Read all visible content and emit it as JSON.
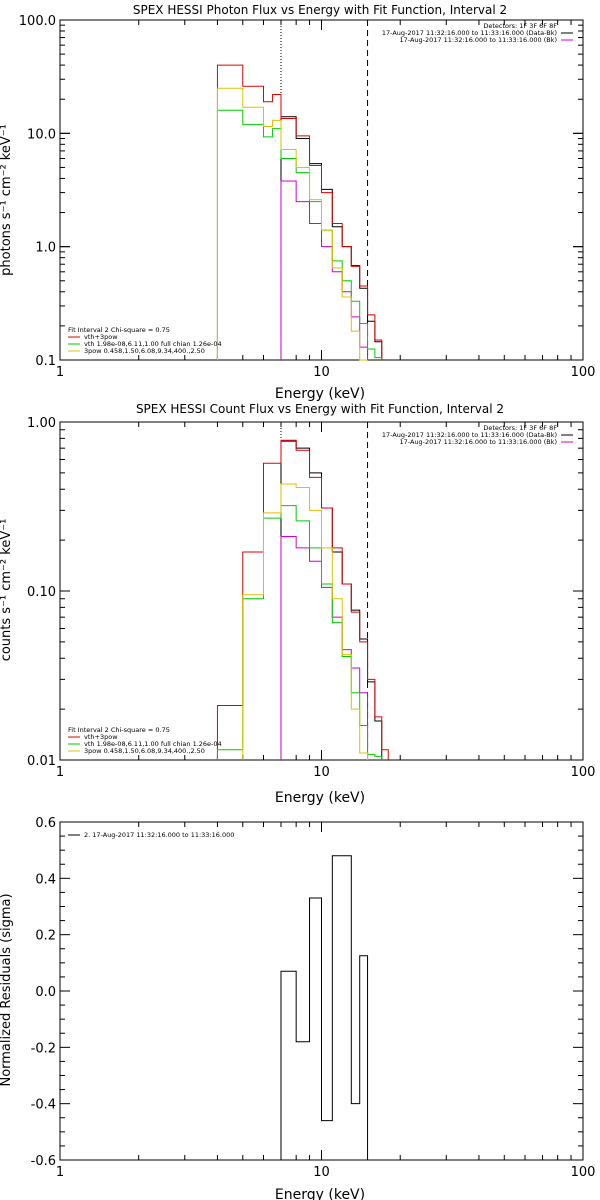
{
  "chart_data": [
    {
      "type": "line",
      "title": "SPEX HESSI Photon Flux vs Energy with Fit Function, Interval 2",
      "xlabel": "Energy (keV)",
      "ylabel": "photons s⁻¹ cm⁻² keV⁻¹",
      "xscale": "log",
      "yscale": "log",
      "xlim": [
        1,
        100
      ],
      "ylim": [
        0.1,
        100
      ],
      "x_ticks": [
        {
          "v": 1,
          "label": "1"
        },
        {
          "v": 10,
          "label": "10"
        },
        {
          "v": 100,
          "label": "100"
        }
      ],
      "y_ticks": [
        {
          "v": 0.1,
          "label": "0.1"
        },
        {
          "v": 1,
          "label": "1.0"
        },
        {
          "v": 10,
          "label": "10.0"
        },
        {
          "v": 100,
          "label": "100.0"
        }
      ],
      "vlines": [
        {
          "x": 7.0,
          "style": "dotted"
        },
        {
          "x": 15.0,
          "style": "dashed"
        }
      ],
      "header_lines": [
        "Detectors: 1F 3F 6F 8F",
        "17-Aug-2017 11:32:16.000 to 11:33:16.000 (Data-Bk)",
        "17-Aug-2017 11:32:16.000 to 11:33:16.000 (Bk)"
      ],
      "header_colors": [
        null,
        "#000000",
        "#d000d0"
      ],
      "legend_lines": [
        "Fit Interval 2   Chi-square = 0.75",
        "vth+3pow",
        "vth 1.98e-08,6.11,1.00  full chian 1.26e-04",
        "3pow 0.458,1.50,6.08,9.34,400.,2.50"
      ],
      "legend_colors": [
        null,
        "#e00000",
        "#00cc00",
        "#e0c000"
      ],
      "series": [
        {
          "name": "Data-Bk",
          "color": "#000000",
          "bins": [
            [
              7,
              8,
              14.0
            ],
            [
              8,
              9,
              9.0
            ],
            [
              9,
              10,
              5.4
            ],
            [
              10,
              11,
              3.2
            ],
            [
              11,
              12,
              1.5
            ],
            [
              12,
              13,
              1.0
            ],
            [
              13,
              14,
              0.68
            ],
            [
              14,
              15,
              0.43
            ],
            [
              15,
              16,
              0.22
            ],
            [
              16,
              17,
              0.145
            ]
          ]
        },
        {
          "name": "Bk",
          "color": "#d000d0",
          "bins": [
            [
              7,
              8,
              3.8
            ],
            [
              8,
              9,
              2.5
            ],
            [
              9,
              10,
              1.6
            ],
            [
              10,
              11,
              1.0
            ],
            [
              11,
              12,
              0.6
            ],
            [
              12,
              13,
              0.4
            ],
            [
              13,
              14,
              0.24
            ],
            [
              14,
              15,
              0.13
            ]
          ]
        },
        {
          "name": "vth+3pow",
          "color": "#e00000",
          "bins": [
            [
              4,
              5,
              40
            ],
            [
              5,
              6,
              26
            ],
            [
              6,
              6.5,
              19
            ],
            [
              6.5,
              7,
              22
            ],
            [
              7,
              8,
              13.5
            ],
            [
              8,
              9,
              9.5
            ],
            [
              9,
              10,
              5.2
            ],
            [
              10,
              11,
              3.0
            ],
            [
              11,
              12,
              1.6
            ],
            [
              12,
              13,
              1.0
            ],
            [
              13,
              14,
              0.67
            ],
            [
              14,
              15,
              0.45
            ],
            [
              15,
              16,
              0.25
            ],
            [
              16,
              17,
              0.15
            ]
          ]
        },
        {
          "name": "vth",
          "color": "#00cc00",
          "bins": [
            [
              4,
              5,
              16
            ],
            [
              5,
              6,
              12
            ],
            [
              6,
              6.5,
              9.3
            ],
            [
              6.5,
              7,
              11
            ],
            [
              7,
              8,
              6.0
            ],
            [
              8,
              9,
              4.5
            ],
            [
              9,
              10,
              2.5
            ],
            [
              10,
              11,
              1.4
            ],
            [
              11,
              12,
              0.75
            ],
            [
              12,
              13,
              0.5
            ],
            [
              13,
              14,
              0.33
            ],
            [
              14,
              15,
              0.21
            ],
            [
              15,
              16,
              0.125
            ],
            [
              16,
              17,
              0.105
            ]
          ]
        },
        {
          "name": "3pow",
          "color": "#e0c000",
          "bins": [
            [
              4,
              5,
              25
            ],
            [
              5,
              6,
              17
            ],
            [
              6,
              6.5,
              11.5
            ],
            [
              6.5,
              7,
              13
            ],
            [
              7,
              8,
              7.2
            ],
            [
              8,
              9,
              5.0
            ],
            [
              9,
              10,
              2.6
            ],
            [
              10,
              11,
              1.4
            ],
            [
              11,
              12,
              0.65
            ],
            [
              12,
              13,
              0.36
            ],
            [
              13,
              14,
              0.18
            ],
            [
              14,
              15,
              0.1
            ]
          ]
        }
      ]
    },
    {
      "type": "line",
      "title": "SPEX HESSI Count Flux vs Energy with Fit Function, Interval 2",
      "xlabel": "Energy (keV)",
      "ylabel": "counts s⁻¹ cm⁻² keV⁻¹",
      "xscale": "log",
      "yscale": "log",
      "xlim": [
        1,
        100
      ],
      "ylim": [
        0.01,
        1
      ],
      "x_ticks": [
        {
          "v": 1,
          "label": "1"
        },
        {
          "v": 10,
          "label": "10"
        },
        {
          "v": 100,
          "label": "100"
        }
      ],
      "y_ticks": [
        {
          "v": 0.01,
          "label": "0.01"
        },
        {
          "v": 0.1,
          "label": "0.10"
        },
        {
          "v": 1,
          "label": "1.00"
        }
      ],
      "vlines": [
        {
          "x": 7.0,
          "style": "dotted"
        },
        {
          "x": 15.0,
          "style": "dashed"
        }
      ],
      "header_lines": [
        "Detectors: 1F 3F 6F 8F",
        "17-Aug-2017 11:32:16.000 to 11:33:16.000 (Data-Bk)",
        "17-Aug-2017 11:32:16.000 to 11:33:16.000 (Bk)"
      ],
      "header_colors": [
        null,
        "#000000",
        "#d000d0"
      ],
      "legend_lines": [
        "Fit Interval 2   Chi-square = 0.75",
        "vth+3pow",
        "vth 1.98e-08,6.11,1.00  full chian 1.26e-04",
        "3pow 0.458,1.50,6.08,9.34,400.,2.50"
      ],
      "legend_colors": [
        null,
        "#e00000",
        "#00cc00",
        "#e0c000"
      ],
      "series": [
        {
          "name": "Data-Bk",
          "color": "#000000",
          "bins": [
            [
              7,
              8,
              0.77
            ],
            [
              8,
              9,
              0.7
            ],
            [
              9,
              10,
              0.5
            ],
            [
              10,
              11,
              0.31
            ],
            [
              11,
              12,
              0.17
            ],
            [
              12,
              13,
              0.11
            ],
            [
              13,
              14,
              0.077
            ],
            [
              14,
              15,
              0.052
            ],
            [
              15,
              16,
              0.029
            ],
            [
              16,
              17,
              0.017
            ]
          ]
        },
        {
          "name": "Bk",
          "color": "#d000d0",
          "bins": [
            [
              7,
              8,
              0.21
            ],
            [
              8,
              9,
              0.18
            ],
            [
              9,
              10,
              0.15
            ],
            [
              10,
              11,
              0.105
            ],
            [
              11,
              12,
              0.07
            ],
            [
              12,
              13,
              0.045
            ],
            [
              13,
              14,
              0.035
            ],
            [
              14,
              15,
              0.025
            ]
          ]
        },
        {
          "name": "vth+3pow",
          "color": "#e00000",
          "bins": [
            [
              4,
              5,
              0.021
            ],
            [
              5,
              6,
              0.17
            ],
            [
              6,
              7,
              0.57
            ],
            [
              7,
              8,
              0.78
            ],
            [
              8,
              9,
              0.68
            ],
            [
              9,
              10,
              0.47
            ],
            [
              10,
              11,
              0.31
            ],
            [
              11,
              12,
              0.18
            ],
            [
              12,
              13,
              0.11
            ],
            [
              13,
              14,
              0.075
            ],
            [
              14,
              15,
              0.05
            ],
            [
              15,
              16,
              0.03
            ],
            [
              16,
              17,
              0.018
            ],
            [
              17,
              18,
              0.0115
            ]
          ]
        },
        {
          "name": "vth",
          "color": "#00cc00",
          "bins": [
            [
              4,
              5,
              0.0115
            ],
            [
              5,
              6,
              0.09
            ],
            [
              6,
              7,
              0.27
            ],
            [
              7,
              8,
              0.32
            ],
            [
              8,
              9,
              0.26
            ],
            [
              9,
              10,
              0.18
            ],
            [
              10,
              11,
              0.11
            ],
            [
              11,
              12,
              0.065
            ],
            [
              12,
              13,
              0.041
            ],
            [
              13,
              14,
              0.025
            ],
            [
              14,
              15,
              0.016
            ],
            [
              15,
              16,
              0.0108
            ],
            [
              16,
              17,
              0.0105
            ]
          ]
        },
        {
          "name": "3pow",
          "color": "#e0c000",
          "bins": [
            [
              5,
              6,
              0.095
            ],
            [
              6,
              7,
              0.29
            ],
            [
              7,
              8,
              0.43
            ],
            [
              8,
              9,
              0.41
            ],
            [
              9,
              10,
              0.3
            ],
            [
              10,
              11,
              0.18
            ],
            [
              11,
              12,
              0.09
            ],
            [
              12,
              13,
              0.042
            ],
            [
              13,
              14,
              0.02
            ],
            [
              14,
              15,
              0.011
            ]
          ]
        }
      ]
    },
    {
      "type": "line",
      "title": "",
      "xlabel": "Energy (keV)",
      "ylabel": "Normalized Residuals (sigma)",
      "xscale": "log",
      "yscale": "linear",
      "xlim": [
        1,
        100
      ],
      "ylim": [
        -0.6,
        0.6
      ],
      "x_ticks": [
        {
          "v": 1,
          "label": "1"
        },
        {
          "v": 10,
          "label": "10"
        },
        {
          "v": 100,
          "label": "100"
        }
      ],
      "y_ticks": [
        {
          "v": -0.6,
          "label": "-0.6"
        },
        {
          "v": -0.4,
          "label": "-0.4"
        },
        {
          "v": -0.2,
          "label": "-0.2"
        },
        {
          "v": 0.0,
          "label": "0.0"
        },
        {
          "v": 0.2,
          "label": "0.2"
        },
        {
          "v": 0.4,
          "label": "0.4"
        },
        {
          "v": 0.6,
          "label": "0.6"
        }
      ],
      "legend_lines": [
        "2. 17-Aug-2017 11:32:16.000 to 11:33:16.000"
      ],
      "legend_colors": [
        "#000000"
      ],
      "series": [
        {
          "name": "residuals",
          "color": "#000000",
          "bins": [
            [
              7,
              8,
              0.07
            ],
            [
              8,
              9,
              -0.18
            ],
            [
              9,
              10,
              0.33
            ],
            [
              10,
              11,
              -0.46
            ],
            [
              11,
              13,
              0.48
            ],
            [
              13,
              14,
              -0.4
            ],
            [
              14,
              15,
              0.125
            ]
          ]
        }
      ]
    }
  ]
}
